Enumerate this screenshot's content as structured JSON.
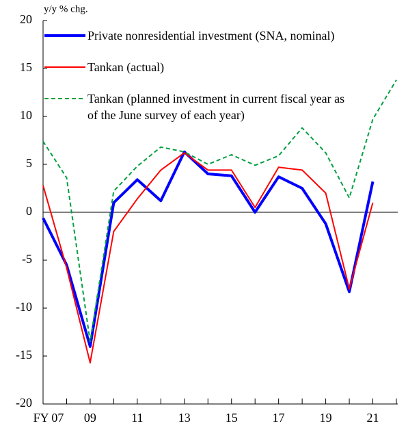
{
  "chart_data": {
    "type": "line",
    "y_label": "y/y % chg.",
    "categories": [
      "FY 07",
      null,
      "09",
      null,
      "11",
      null,
      "13",
      null,
      "15",
      null,
      "17",
      null,
      "19",
      null,
      "21",
      null
    ],
    "series": [
      {
        "name": "Private nonresidential investment (SNA, nominal)",
        "color": "#0000ff",
        "values": [
          -0.6,
          -5.5,
          -14.0,
          1.0,
          3.4,
          1.2,
          6.3,
          4.0,
          3.8,
          0.0,
          3.7,
          2.5,
          -1.2,
          -8.3,
          3.2,
          null
        ]
      },
      {
        "name": "Tankan (actual)",
        "color": "#ff0000",
        "values": [
          2.8,
          -5.8,
          -15.7,
          -2.0,
          1.4,
          4.4,
          6.2,
          4.4,
          4.4,
          0.5,
          4.7,
          4.4,
          2.0,
          -8.0,
          1.0,
          null
        ]
      },
      {
        "name": "Tankan (planned investment in current fiscal year as of the June survey of each year)",
        "color": "#00a040",
        "dashed": true,
        "values": [
          7.4,
          3.6,
          -13.5,
          2.2,
          4.8,
          6.8,
          6.3,
          5.0,
          6.0,
          4.9,
          5.9,
          8.8,
          6.2,
          1.5,
          9.7,
          13.8
        ]
      }
    ],
    "ylim": [
      -20,
      20
    ],
    "yticks": [
      -20,
      -15,
      -10,
      -5,
      0,
      5,
      10,
      15,
      20
    ]
  }
}
